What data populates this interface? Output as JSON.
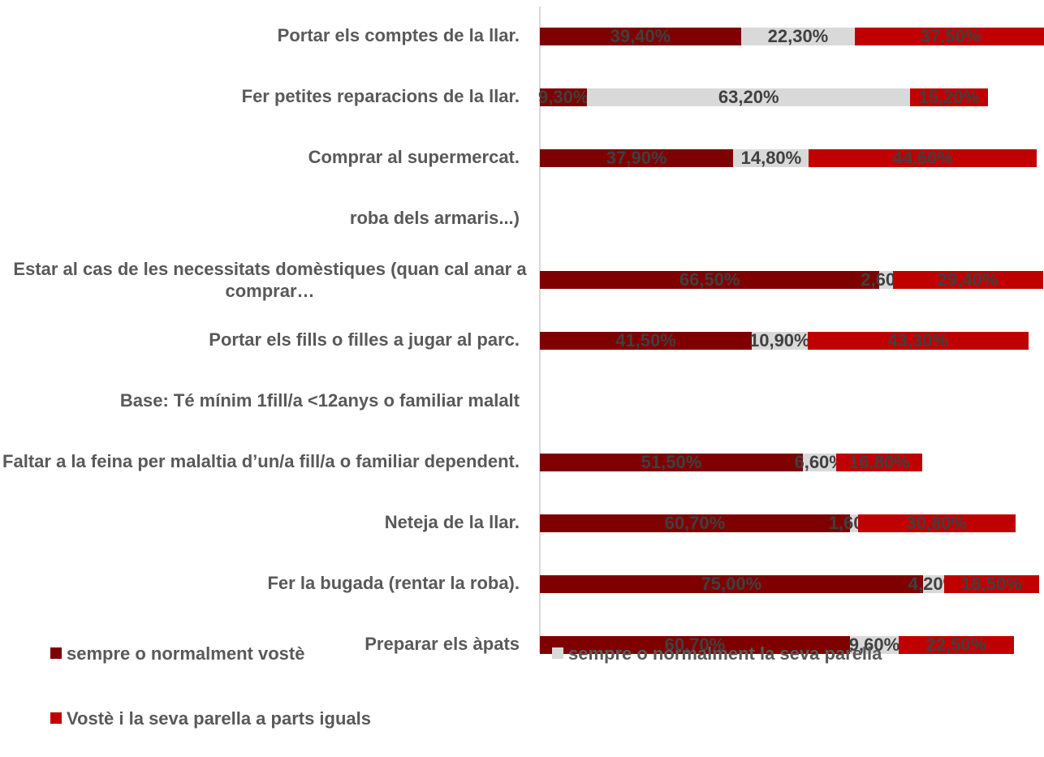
{
  "chart_data": {
    "type": "stacked-bar-horizontal",
    "categories": [
      "Portar els comptes de la llar.",
      "Fer petites reparacions de la llar.",
      "Comprar al supermercat.",
      "roba dels armaris...)",
      "Estar al cas de les necessitats domèstiques (quan cal anar a comprar…",
      "Portar els fills o filles a jugar al parc.",
      "Base: Té mínim 1fill/a <12anys o familiar malalt",
      "Faltar a la feina per malaltia d’un/a fill/a o familiar dependent.",
      "Neteja de la llar.",
      "Fer la bugada (rentar la roba).",
      "Preparar els àpats"
    ],
    "series": [
      {
        "name": "sempre o normalment vostè",
        "color": "#7f0000",
        "values": [
          39.4,
          9.3,
          37.9,
          null,
          66.5,
          41.5,
          null,
          51.5,
          60.7,
          75.0,
          60.7
        ],
        "value_labels": [
          "39,40%",
          "9,30%",
          "37,90%",
          null,
          "66,50%",
          "41,50%",
          null,
          "51,50%",
          "60,70%",
          "75,00%",
          "60,70%"
        ]
      },
      {
        "name": "sempre o normalment la seva parella",
        "color": "#d9d9d9",
        "values": [
          22.3,
          63.2,
          14.8,
          null,
          2.6,
          10.9,
          null,
          6.6,
          1.6,
          4.2,
          9.6
        ],
        "value_labels": [
          "22,30%",
          "63,20%",
          "14,80%",
          null,
          "2,60%",
          "10,90%",
          null,
          "6,60%",
          "1,60%",
          "4,20%",
          "9,60%"
        ]
      },
      {
        "name": "Vostè i la seva parella a parts iguals",
        "color": "#c00000",
        "values": [
          37.5,
          15.2,
          44.6,
          null,
          29.4,
          43.3,
          null,
          16.8,
          30.8,
          18.5,
          22.5
        ],
        "value_labels": [
          "37,50%",
          "15,20%",
          "44,60%",
          null,
          "29,40%",
          "43,30%",
          null,
          "16,80%",
          "30,80%",
          "18,50%",
          "22,50%"
        ]
      }
    ],
    "xlim": [
      0,
      100
    ]
  }
}
